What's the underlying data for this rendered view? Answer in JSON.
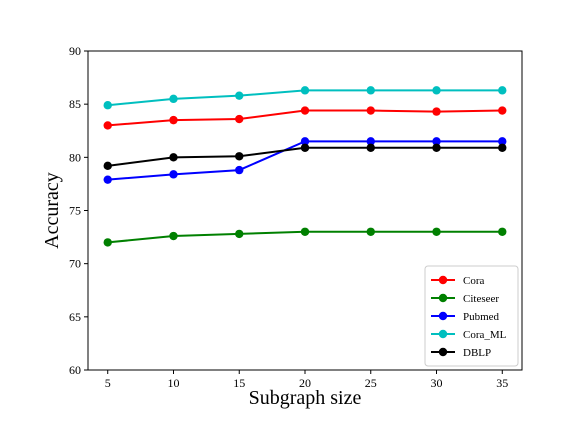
{
  "chart_data": {
    "type": "line",
    "xlabel": "Subgraph size",
    "ylabel": "Accuracy",
    "x": [
      5,
      10,
      15,
      20,
      25,
      30,
      35
    ],
    "xlim": [
      3.5,
      36.5
    ],
    "ylim": [
      60,
      90
    ],
    "xticks": [
      5,
      10,
      15,
      20,
      25,
      30,
      35
    ],
    "yticks": [
      60,
      65,
      70,
      75,
      80,
      85,
      90
    ],
    "grid": false,
    "legend_position": "bottom-right",
    "series": [
      {
        "name": "Cora",
        "color": "#ff0000",
        "values": [
          83.0,
          83.5,
          83.6,
          84.4,
          84.4,
          84.3,
          84.4
        ]
      },
      {
        "name": "Citeseer",
        "color": "#008000",
        "values": [
          72.0,
          72.6,
          72.8,
          73.0,
          73.0,
          73.0,
          73.0
        ]
      },
      {
        "name": "Pubmed",
        "color": "#0000ff",
        "values": [
          77.9,
          78.4,
          78.8,
          81.5,
          81.5,
          81.5,
          81.5
        ]
      },
      {
        "name": "Cora_ML",
        "color": "#00bfbf",
        "values": [
          84.9,
          85.5,
          85.8,
          86.3,
          86.3,
          86.3,
          86.3
        ]
      },
      {
        "name": "DBLP",
        "color": "#000000",
        "values": [
          79.2,
          80.0,
          80.1,
          80.9,
          80.9,
          80.9,
          80.9
        ]
      }
    ]
  }
}
